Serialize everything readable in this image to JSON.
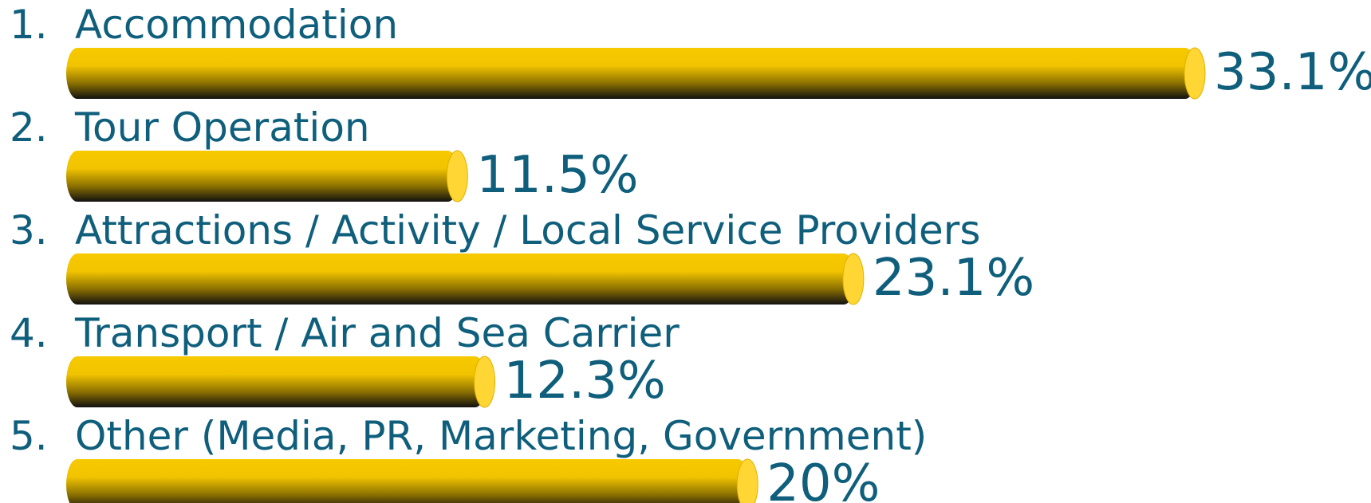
{
  "chart_data": {
    "type": "bar",
    "orientation": "horizontal",
    "numbers": [
      "1.",
      "2.",
      "3.",
      "4.",
      "5."
    ],
    "categories": [
      "Accommodation",
      "Tour Operation",
      "Attractions / Activity / Local Service Providers",
      "Transport / Air and Sea Carrier",
      "Other (Media, PR, Marketing, Government)"
    ],
    "values": [
      33.1,
      11.5,
      23.1,
      12.3,
      20
    ],
    "value_labels": [
      "33.1%",
      "11.5%",
      "23.1%",
      "12.3%",
      "20%"
    ],
    "color": "#f7c900",
    "text_color": "#0f5f7c"
  }
}
